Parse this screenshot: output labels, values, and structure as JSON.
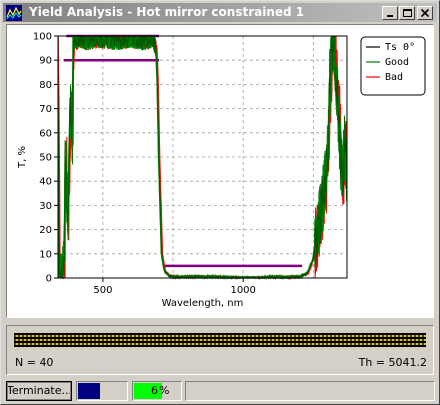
{
  "window": {
    "title": "Yield Analysis - Hot mirror constrained 1",
    "icon": "chart-app-icon",
    "controls": [
      "minimize-icon",
      "maximize-icon",
      "close-icon"
    ]
  },
  "chart_data": {
    "type": "line",
    "title": "",
    "xlabel": "Wavelength, nm",
    "ylabel": "T, %",
    "xlim": [
      340,
      1370
    ],
    "ylim": [
      0,
      100
    ],
    "xticks": [
      500,
      1000
    ],
    "yticks": [
      0,
      10,
      20,
      30,
      40,
      50,
      60,
      70,
      80,
      90,
      100
    ],
    "grid": true,
    "legend_position": "top-right",
    "series": [
      {
        "name": "Ts 0°",
        "color": "#000000"
      },
      {
        "name": "Good",
        "color": "#008000"
      },
      {
        "name": "Bad",
        "color": "#ff0000"
      }
    ],
    "targets": [
      {
        "x": [
          360,
          700
        ],
        "y": [
          90,
          90
        ],
        "color": "#800080"
      },
      {
        "x": [
          370,
          700
        ],
        "y": [
          100,
          100
        ],
        "color": "#800080"
      },
      {
        "x": [
          720,
          1210
        ],
        "y": [
          5,
          5
        ],
        "color": "#800080"
      }
    ],
    "curve": {
      "x": [
        340,
        345,
        355,
        362,
        368,
        375,
        385,
        392,
        395,
        400,
        420,
        440,
        480,
        550,
        600,
        650,
        680,
        690,
        695,
        700,
        705,
        710,
        720,
        735,
        750,
        800,
        900,
        1000,
        1050,
        1100,
        1150,
        1200,
        1230,
        1250,
        1262,
        1270,
        1282,
        1295,
        1305,
        1312,
        1318,
        1322,
        1330,
        1340,
        1348,
        1355,
        1362,
        1368
      ],
      "y": [
        90,
        2,
        0,
        8,
        50,
        20,
        75,
        55,
        96,
        98,
        99,
        98,
        99,
        98,
        99,
        98,
        99,
        95,
        80,
        50,
        30,
        10,
        3,
        1,
        0.5,
        0.5,
        0.5,
        0,
        0,
        0.5,
        0.3,
        0.5,
        2,
        8,
        18,
        22,
        30,
        40,
        60,
        85,
        97,
        98,
        85,
        70,
        50,
        42,
        55,
        45
      ]
    }
  },
  "info": {
    "n_label": "N = 40",
    "th_label": "Th = 5041.2"
  },
  "status": {
    "terminate_label": "Terminate...",
    "progress_fraction": 0.45,
    "percent_value": "6",
    "percent_unit": "%",
    "secondary_fraction": 0.6
  }
}
